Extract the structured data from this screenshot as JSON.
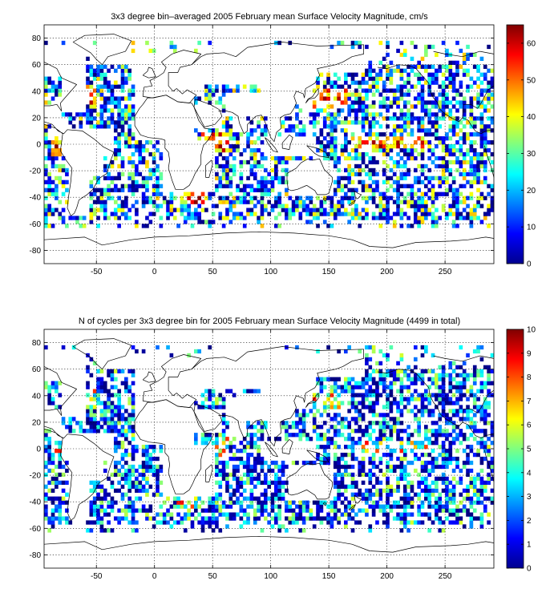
{
  "chart_data": [
    {
      "type": "heatmap",
      "title": "3x3 degree bin–averaged 2005 February mean Surface Velocity Magnitude, cm/s",
      "xlim": [
        -95,
        292
      ],
      "ylim": [
        -90,
        90
      ],
      "x_ticks": [
        -50,
        0,
        50,
        100,
        150,
        200,
        250
      ],
      "y_ticks": [
        -80,
        -60,
        -40,
        -20,
        0,
        20,
        40,
        60,
        80
      ],
      "grid": true,
      "bin_size_deg": 3,
      "colormap": "jet",
      "colorbar": {
        "min": 0,
        "max": 65,
        "ticks": [
          0,
          10,
          20,
          30,
          40,
          50,
          60
        ]
      }
    },
    {
      "type": "heatmap",
      "title": "N of cycles per 3x3 degree bin for 2005 February mean Surface Velocity Magnitude (4499 in total)",
      "xlim": [
        -95,
        292
      ],
      "ylim": [
        -90,
        90
      ],
      "x_ticks": [
        -50,
        0,
        50,
        100,
        150,
        200,
        250
      ],
      "y_ticks": [
        -80,
        -60,
        -40,
        -20,
        0,
        20,
        40,
        60,
        80
      ],
      "grid": true,
      "bin_size_deg": 3,
      "colormap": "jet",
      "colorbar": {
        "min": 0,
        "max": 10,
        "ticks": [
          0,
          1,
          2,
          3,
          4,
          5,
          6,
          7,
          8,
          9,
          10
        ]
      }
    }
  ]
}
